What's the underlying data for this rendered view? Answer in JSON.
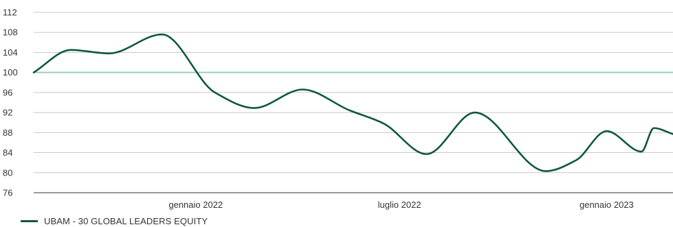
{
  "chart_data": {
    "type": "line",
    "ylim": [
      76,
      112
    ],
    "yticks": [
      76,
      80,
      84,
      88,
      92,
      96,
      100,
      104,
      108,
      112
    ],
    "xlim": [
      "2021-08-10",
      "2023-03-01"
    ],
    "xtick_labels": [
      {
        "date": "2022-01-01",
        "label": "gennaio 2022"
      },
      {
        "date": "2022-07-01",
        "label": "luglio 2022"
      },
      {
        "date": "2023-01-01",
        "label": "gennaio 2023"
      }
    ],
    "reference_line": 100,
    "grid": true,
    "legend_position": "bottom-left",
    "colors": {
      "series": "#0f5740",
      "reference": "#9ccfb8",
      "grid": "#c8c8c8",
      "axis": "#333333"
    },
    "series": [
      {
        "name": "UBAM - 30 GLOBAL LEADERS EQUITY",
        "points": [
          [
            "2021-08-10",
            100.0
          ],
          [
            "2021-09-12",
            104.5
          ],
          [
            "2021-10-16",
            103.8
          ],
          [
            "2021-12-02",
            107.6
          ],
          [
            "2022-01-18",
            96.0
          ],
          [
            "2022-02-22",
            92.9
          ],
          [
            "2022-04-06",
            96.6
          ],
          [
            "2022-05-17",
            92.5
          ],
          [
            "2022-06-17",
            89.8
          ],
          [
            "2022-07-25",
            83.7
          ],
          [
            "2022-09-06",
            92.0
          ],
          [
            "2022-11-08",
            80.3
          ],
          [
            "2022-12-05",
            82.5
          ],
          [
            "2023-01-01",
            88.3
          ],
          [
            "2023-02-01",
            84.2
          ],
          [
            "2023-02-12",
            88.9
          ],
          [
            "2023-03-01",
            87.7
          ]
        ]
      }
    ]
  }
}
